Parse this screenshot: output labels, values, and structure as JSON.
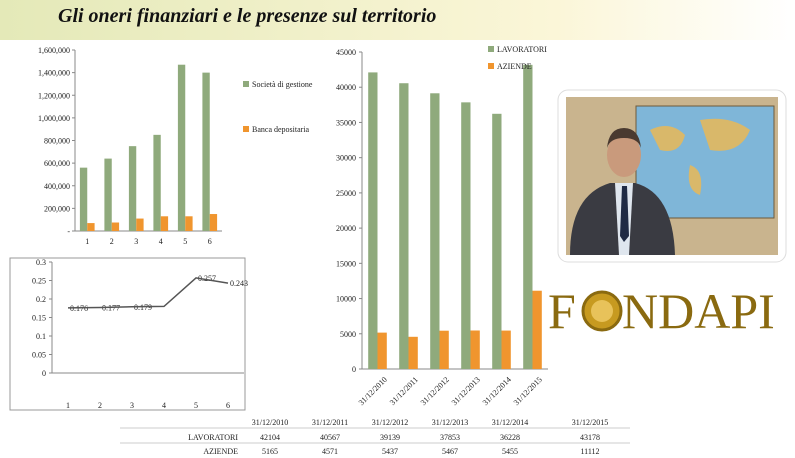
{
  "header": {
    "title": "Gli oneri finanziari e le presenze sul territorio"
  },
  "chart_data": [
    {
      "type": "bar",
      "categories": [
        "1",
        "2",
        "3",
        "4",
        "5",
        "6"
      ],
      "series": [
        {
          "name": "Società di gestione",
          "color": "#8faa7c",
          "values": [
            560000,
            640000,
            750000,
            850000,
            1470000,
            1400000
          ]
        },
        {
          "name": "Banca depositaria",
          "color": "#f0952e",
          "values": [
            70000,
            75000,
            110000,
            130000,
            130000,
            150000
          ]
        }
      ],
      "ylim": [
        0,
        1600000
      ],
      "yticks": [
        {
          "value": 0,
          "label": "-"
        },
        {
          "value": 200000,
          "label": "200,000"
        },
        {
          "value": 400000,
          "label": "400,000"
        },
        {
          "value": 600000,
          "label": "600,000"
        },
        {
          "value": 800000,
          "label": "800,000"
        },
        {
          "value": 1000000,
          "label": "1,000,000"
        },
        {
          "value": 1200000,
          "label": "1,200,000"
        },
        {
          "value": 1400000,
          "label": "1,400,000"
        },
        {
          "value": 1600000,
          "label": "1,600,000"
        }
      ],
      "legend": "right"
    },
    {
      "type": "line",
      "categories": [
        "1",
        "2",
        "3",
        "4",
        "5",
        "6"
      ],
      "values": [
        0.176,
        0.177,
        0.179,
        0.18,
        0.257,
        0.243
      ],
      "value_labels": [
        "0.176",
        "0.177",
        "0.179",
        null,
        "0.257",
        "0.243"
      ],
      "color": "#555555",
      "ylim": [
        0,
        0.3
      ],
      "yticks": [
        0,
        0.05,
        0.1,
        0.15,
        0.2,
        0.25,
        0.3
      ]
    },
    {
      "type": "bar",
      "categories": [
        "31/12/2010",
        "31/12/2011",
        "31/12/2012",
        "31/12/2013",
        "31/12/2014",
        "31/12/2015"
      ],
      "series": [
        {
          "name": "LAVORATORI",
          "color": "#8faa7c",
          "values": [
            42104,
            40567,
            39139,
            37853,
            36228,
            43178
          ]
        },
        {
          "name": "AZIENDE",
          "color": "#f0952e",
          "values": [
            5165,
            4571,
            5437,
            5467,
            5455,
            11112
          ]
        }
      ],
      "ylim": [
        0,
        45000
      ],
      "yticks": [
        0,
        5000,
        10000,
        15000,
        20000,
        25000,
        30000,
        35000,
        40000,
        45000
      ],
      "legend": "top-right"
    }
  ],
  "table": {
    "header": [
      "31/12/2010",
      "31/12/2011",
      "31/12/2012",
      "31/12/2013",
      "31/12/2014",
      "31/12/2015"
    ],
    "rows": [
      [
        "LAVORATORI",
        "42104",
        "40567",
        "39139",
        "37853",
        "36228",
        "43178"
      ],
      [
        "AZIENDE",
        "5165",
        "4571",
        "5437",
        "5467",
        "5455",
        "11112"
      ]
    ]
  },
  "logo": {
    "left": "F",
    "right": "NDAPI"
  }
}
